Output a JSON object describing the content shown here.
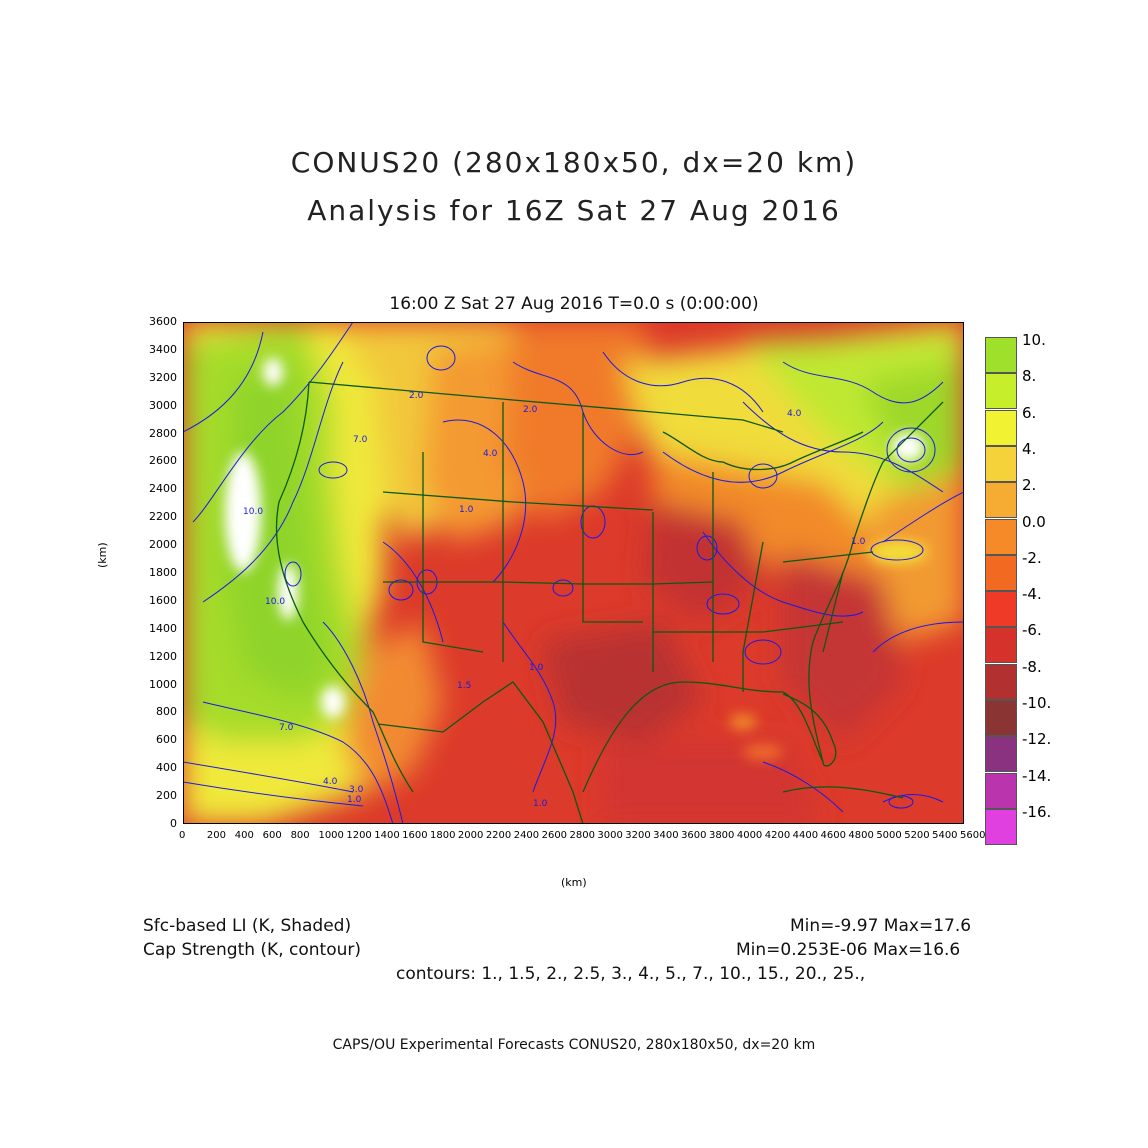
{
  "title": {
    "line1": "CONUS20 (280x180x50, dx=20 km)",
    "line2": "Analysis for 16Z Sat 27 Aug 2016"
  },
  "subtitle": "16:00 Z Sat 27 Aug 2016    T=0.0 s (0:00:00)",
  "axes": {
    "x_unit": "(km)",
    "y_unit": "(km)",
    "x_ticks": [
      "0",
      "200",
      "400",
      "600",
      "800",
      "1000",
      "1200",
      "1400",
      "1600",
      "1800",
      "2000",
      "2200",
      "2400",
      "2600",
      "2800",
      "3000",
      "3200",
      "3400",
      "3600",
      "3800",
      "4000",
      "4200",
      "4400",
      "4600",
      "4800",
      "5000",
      "5200",
      "5400",
      "5600"
    ],
    "y_ticks": [
      "0",
      "200",
      "400",
      "600",
      "800",
      "1000",
      "1200",
      "1400",
      "1600",
      "1800",
      "2000",
      "2200",
      "2400",
      "2600",
      "2800",
      "3000",
      "3200",
      "3400",
      "3600"
    ]
  },
  "legend": {
    "labels": [
      "10.",
      "8.",
      "6.",
      "4.",
      "2.",
      "0.0",
      "-2.",
      "-4.",
      "-6.",
      "-8.",
      "-10.",
      "-12.",
      "-14.",
      "-16."
    ],
    "colors": [
      "#9ee02a",
      "#c6ee2a",
      "#f0f232",
      "#f6d23a",
      "#f6ac32",
      "#f68a28",
      "#f26a22",
      "#ee3a26",
      "#d6322c",
      "#b23030",
      "#8a3434",
      "#8a3280",
      "#ba34ae",
      "#e040e0"
    ]
  },
  "stats": {
    "line1_left": "Sfc-based LI (K, Shaded)",
    "line1_right": "Min=-9.97 Max=17.6",
    "line2_left": "Cap Strength (K, contour)",
    "line2_right": "Min=0.253E-06 Max=16.6",
    "line3": "contours: 1., 1.5, 2., 2.5, 3., 4., 5., 7., 10., 15., 20., 25.,"
  },
  "footer": "CAPS/OU Experimental Forecasts   CONUS20, 280x180x50, dx=20 km",
  "contour_labels": [
    "10.0",
    "10.0",
    "7.0",
    "7.0",
    "4.0",
    "2.0",
    "1.0",
    "1.5",
    "1.0",
    "3.0",
    "4.0",
    "2.0",
    "1.0",
    "4.0",
    "1.0",
    "1.0"
  ],
  "colors": {
    "contour": "#1a1ae6",
    "border": "#0a5a14"
  }
}
